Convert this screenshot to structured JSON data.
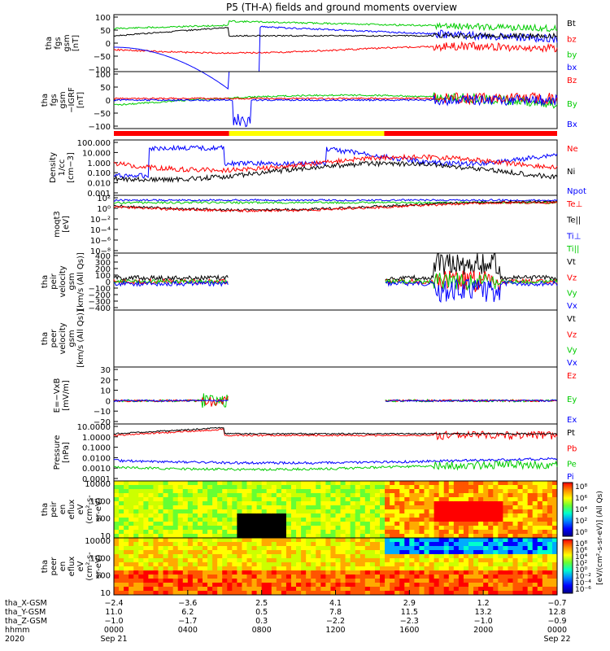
{
  "title": "P5 (TH-A) fields and ground moments overview",
  "colors": {
    "black": "#000000",
    "red": "#ff0000",
    "green": "#00cc00",
    "blue": "#0000ff",
    "yellow": "#ffff00",
    "darkblue": "#000080"
  },
  "chart_data": [
    {
      "type": "line",
      "ylabel": [
        "tha",
        "fgs",
        "gsm",
        "[nT]"
      ],
      "ylim": [
        -100,
        100
      ],
      "yticks": [
        "100",
        "50",
        "0",
        "−50",
        "−100"
      ],
      "legend": [
        {
          "text": "Bt",
          "color": "black"
        },
        {
          "text": "bz",
          "color": "red"
        },
        {
          "text": "by",
          "color": "green"
        },
        {
          "text": "bx",
          "color": "blue"
        }
      ]
    },
    {
      "type": "line",
      "ylabel": [
        "tha",
        "fgs",
        "gsm",
        "−IGRF",
        "[nT]"
      ],
      "ylim": [
        -130,
        100
      ],
      "yticks": [
        "100",
        "50",
        "0",
        "−50",
        "−100"
      ],
      "legend": [
        {
          "text": "Bz",
          "color": "red"
        },
        {
          "text": "By",
          "color": "green"
        },
        {
          "text": "Bx",
          "color": "blue"
        }
      ]
    },
    {
      "type": "line",
      "ylabel": [
        "Density",
        "1/cc",
        "[cm−3]"
      ],
      "scale": "log",
      "yticks": [
        "100.000",
        "10.000",
        "1.000",
        "0.100",
        "0.010",
        "0.001"
      ],
      "legend": [
        {
          "text": "Ne",
          "color": "red"
        },
        {
          "text": "Ni",
          "color": "black"
        },
        {
          "text": "Npot",
          "color": "blue"
        }
      ]
    },
    {
      "type": "line",
      "ylabel": [
        "moqt3",
        "[eV]"
      ],
      "scale": "log",
      "yticks": [
        "10²",
        "10⁰",
        "10−²",
        "10−⁴",
        "10−⁶",
        "10−⁸"
      ],
      "legend": [
        {
          "text": "Te⊥",
          "color": "red"
        },
        {
          "text": "Te||",
          "color": "black"
        },
        {
          "text": "Ti⊥",
          "color": "blue"
        },
        {
          "text": "Ti||",
          "color": "green"
        }
      ]
    },
    {
      "type": "line",
      "ylabel": [
        "tha",
        "peir",
        "velocity",
        "gsm",
        "[km/s (All Qs)]"
      ],
      "ylim": [
        -400,
        400
      ],
      "yticks": [
        "400",
        "300",
        "200",
        "100",
        "0",
        "−100",
        "−200",
        "−300",
        "−400"
      ],
      "legend": [
        {
          "text": "Vt",
          "color": "black"
        },
        {
          "text": "Vz",
          "color": "red"
        },
        {
          "text": "Vy",
          "color": "green"
        },
        {
          "text": "Vx",
          "color": "blue"
        }
      ]
    },
    {
      "type": "line",
      "ylabel": [
        "tha",
        "peer",
        "velocity",
        "gsm",
        "[km/s (All Qs)]"
      ],
      "yticks": [],
      "legend": [
        {
          "text": "Vt",
          "color": "black"
        },
        {
          "text": "Vz",
          "color": "red"
        },
        {
          "text": "Vy",
          "color": "green"
        },
        {
          "text": "Vx",
          "color": "blue"
        }
      ]
    },
    {
      "type": "line",
      "ylabel": [
        "E=−VxB",
        "[mV/m]"
      ],
      "ylim": [
        -20,
        30
      ],
      "yticks": [
        "30",
        "20",
        "10",
        "0",
        "−10",
        "−20"
      ],
      "legend": [
        {
          "text": "Ez",
          "color": "red"
        },
        {
          "text": "Ey",
          "color": "green"
        },
        {
          "text": "Ex",
          "color": "blue"
        }
      ]
    },
    {
      "type": "line",
      "ylabel": [
        "Pressure",
        "[nPa]"
      ],
      "scale": "log",
      "yticks": [
        "10.0000",
        "1.0000",
        "0.1000",
        "0.0100",
        "0.0010",
        "0.0001"
      ],
      "legend": [
        {
          "text": "Pt",
          "color": "black"
        },
        {
          "text": "Pb",
          "color": "red"
        },
        {
          "text": "Pe",
          "color": "green"
        },
        {
          "text": "Pi",
          "color": "blue"
        }
      ]
    },
    {
      "type": "heatmap",
      "ylabel": [
        "tha",
        "peir",
        "en",
        "eflux",
        "eV",
        "(cm²-s-",
        "sr-eV)"
      ],
      "scale": "log",
      "yticks": [
        "10000",
        "1000",
        "100",
        "10"
      ],
      "colorbar": [
        "10⁸",
        "10⁶",
        "10⁴",
        "10²",
        "10⁰"
      ]
    },
    {
      "type": "heatmap",
      "ylabel": [
        "tha",
        "peer",
        "en",
        "eflux",
        "eV",
        "(cm²-s-",
        "sr-eV)"
      ],
      "scale": "log",
      "yticks": [
        "10000",
        "1000",
        "100",
        "10"
      ],
      "colorbar": [
        "10⁸",
        "10⁶",
        "10⁴",
        "10²",
        "10⁰",
        "10⁻²",
        "10⁻⁴",
        "10⁻⁶"
      ]
    }
  ],
  "colorbar_label": "[eV/(cm²-s-sr-eV)] (All Qs)",
  "xaxis": {
    "row_labels": [
      "tha_X-GSM",
      "tha_Y-GSM",
      "tha_Z-GSM",
      "hhmm",
      "2020"
    ],
    "ticks": [
      {
        "values": [
          "−2.4",
          "11.0",
          "−1.0",
          "0000",
          "Sep 21"
        ]
      },
      {
        "values": [
          "−3.6",
          "6.2",
          "−1.7",
          "0400",
          ""
        ]
      },
      {
        "values": [
          "2.5",
          "0.5",
          "0.3",
          "0800",
          ""
        ]
      },
      {
        "values": [
          "4.1",
          "7.8",
          "−2.2",
          "1200",
          ""
        ]
      },
      {
        "values": [
          "2.9",
          "11.5",
          "−2.3",
          "1600",
          ""
        ]
      },
      {
        "values": [
          "1.2",
          "13.2",
          "−1.0",
          "2000",
          ""
        ]
      },
      {
        "values": [
          "−0.7",
          "12.8",
          "−0.9",
          "0000",
          "Sep 22"
        ]
      }
    ]
  }
}
